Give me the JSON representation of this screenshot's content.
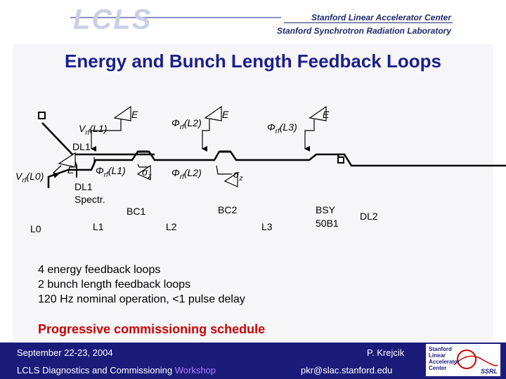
{
  "header": {
    "logo_text": "LCLS",
    "org_line1": "Stanford Linear Accelerator Center",
    "org_line2": "Stanford Synchrotron Radiation Laboratory"
  },
  "slide": {
    "title": "Energy and Bunch Length Feedback Loops",
    "diagram": {
      "sections": {
        "l0": "L0",
        "l1": "L1",
        "l2": "L2",
        "l3": "L3",
        "bc1": "BC1",
        "bc2": "BC2",
        "bsy": "BSY",
        "b50": "50B1",
        "dl1": "DL1",
        "dl1_spectr_1": "DL1",
        "dl1_spectr_2": "Spectr.",
        "dl2": "DL2"
      },
      "feedback_labels": {
        "v_l0": {
          "symbol": "V",
          "sub": "rf",
          "arg": "(L0)"
        },
        "v_l1": {
          "symbol": "V",
          "sub": "rf",
          "arg": "(L1)"
        },
        "phi_l1": {
          "symbol": "Φ",
          "sub": "rf",
          "arg": "(L1)"
        },
        "phi_l2_upper": {
          "symbol": "Φ",
          "sub": "rf",
          "arg": "(L2)"
        },
        "phi_l2_lower": {
          "symbol": "Φ",
          "sub": "rf",
          "arg": "(L2)"
        },
        "phi_l3": {
          "symbol": "Φ",
          "sub": "rf",
          "arg": "(L3)"
        },
        "sigma_z_1": {
          "symbol": "σ",
          "sub": "z"
        },
        "sigma_z_2": {
          "symbol": "σ",
          "sub": "z"
        },
        "e_1": "E",
        "e_2": "E",
        "e_3": "E",
        "e_4": "E",
        "e_5": "E"
      }
    },
    "bullets": [
      "4 energy feedback loops",
      "2 bunch length feedback loops",
      "120 Hz nominal operation, <1 pulse delay"
    ],
    "schedule_heading": "Progressive commissioning schedule"
  },
  "footer": {
    "date": "September 22-23, 2004",
    "meeting_prefix": "LCLS Diagnostics and Commissioning ",
    "meeting_highlight": "Workshop",
    "author": "P. Krejcik",
    "email": "pkr@slac.stanford.edu",
    "badge_lines": [
      "Stanford",
      "Linear",
      "Accelerator",
      "Center"
    ],
    "badge_code": "SSRL"
  },
  "colors": {
    "title": "#1b1f8a",
    "schedule": "#cc0000",
    "footer_bg": "#1b1c7a",
    "workshop": "#b27dff"
  }
}
